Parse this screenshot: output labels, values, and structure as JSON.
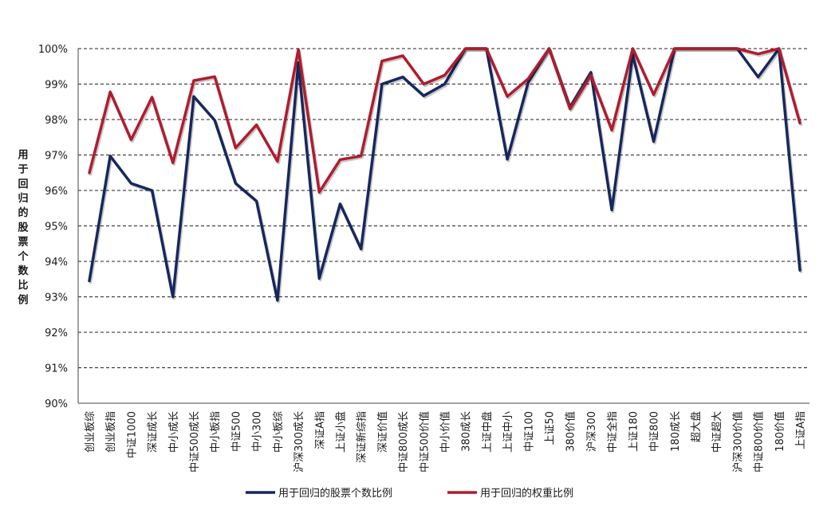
{
  "chart_data": {
    "type": "line",
    "title": "",
    "xlabel": "",
    "ylabel": "用于回归的股票个数比例",
    "ylim": [
      90,
      100
    ],
    "yticks": [
      "90%",
      "91%",
      "92%",
      "93%",
      "94%",
      "95%",
      "96%",
      "97%",
      "98%",
      "99%",
      "100%"
    ],
    "grid": true,
    "legend_position": "bottom",
    "categories": [
      "创业板综",
      "创业板指",
      "中证1000",
      "深证成长",
      "中小成长",
      "中证500成长",
      "中小板指",
      "中证500",
      "中小300",
      "中小板综",
      "沪深300成长",
      "深证A指",
      "上证小盘",
      "深证新综指",
      "深证价值",
      "中证800成长",
      "中证500价值",
      "中小价值",
      "380成长",
      "上证中盘",
      "上证中小",
      "中证100",
      "上证50",
      "380价值",
      "沪深300",
      "中证全指",
      "上证180",
      "中证800",
      "180成长",
      "超大盘",
      "中证超大",
      "沪深300价值",
      "中证800价值",
      "180价值",
      "上证A指"
    ],
    "series": [
      {
        "name": "用于回归的股票个数比例",
        "color": "#17275e",
        "values": [
          93.45,
          96.97,
          96.2,
          96.0,
          93.0,
          98.65,
          97.98,
          96.2,
          95.7,
          92.9,
          99.6,
          93.52,
          95.62,
          94.35,
          99.0,
          99.2,
          98.67,
          99.0,
          100.0,
          100.0,
          96.88,
          99.05,
          100.0,
          98.35,
          99.33,
          95.45,
          99.83,
          97.38,
          100.0,
          100.0,
          100.0,
          100.0,
          99.2,
          100.0,
          93.75
        ]
      },
      {
        "name": "用于回归的权重比例",
        "color": "#b01c2e",
        "values": [
          96.5,
          98.78,
          97.43,
          98.63,
          96.78,
          99.1,
          99.21,
          97.2,
          97.85,
          96.82,
          99.98,
          95.95,
          96.87,
          96.97,
          99.65,
          99.8,
          99.0,
          99.25,
          100.0,
          100.0,
          98.65,
          99.15,
          100.0,
          98.3,
          99.25,
          97.7,
          100.0,
          98.7,
          100.0,
          100.0,
          100.0,
          100.0,
          99.85,
          100.0,
          97.9
        ]
      }
    ]
  }
}
